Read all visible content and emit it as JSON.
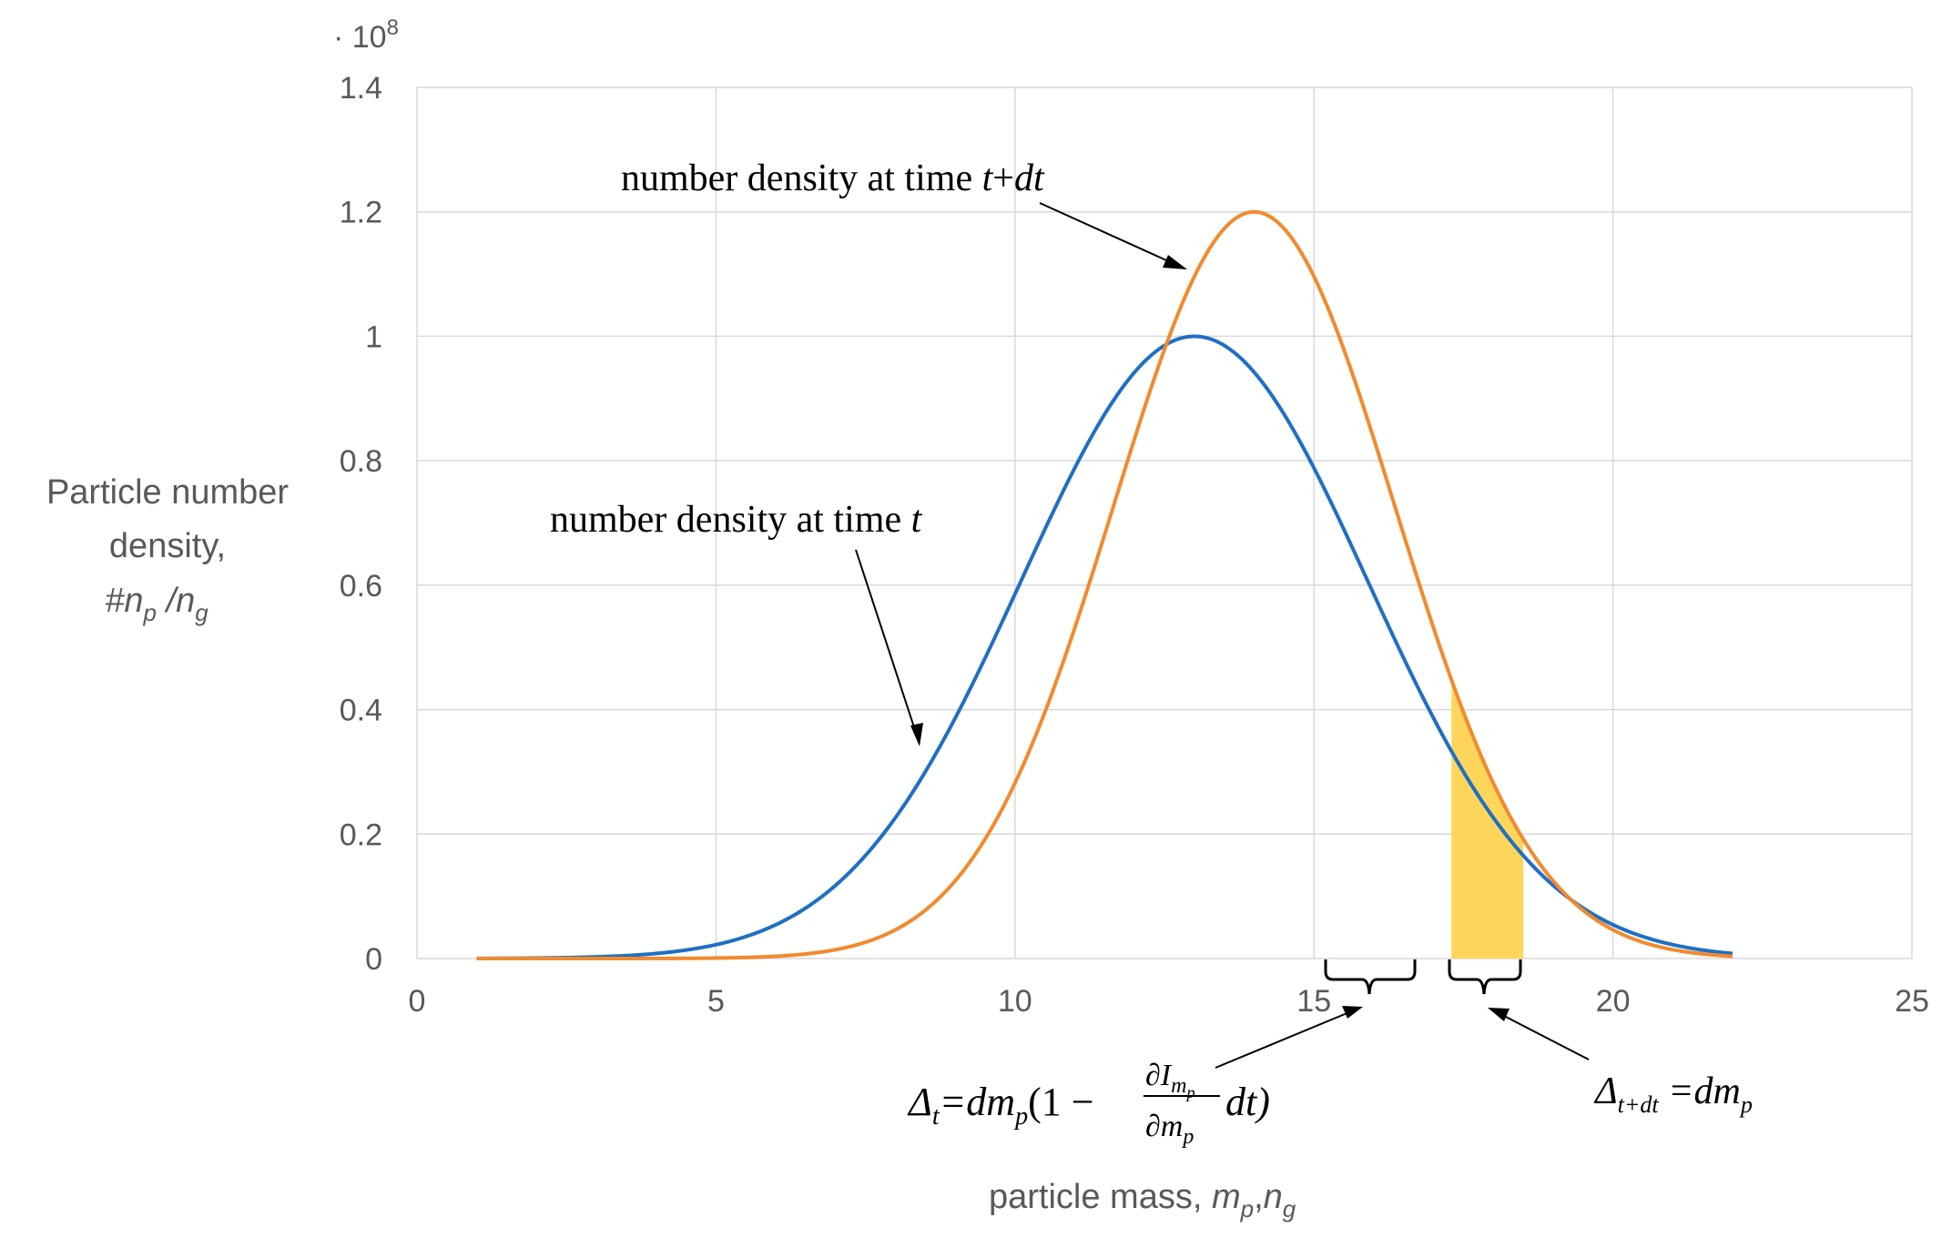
{
  "chart_data": {
    "type": "line",
    "title": "",
    "xlabel": "particle mass,",
    "xlabel_vars": [
      "m",
      "p",
      ",",
      "n",
      "g"
    ],
    "ylabel_lines": [
      "Particle number",
      "density,"
    ],
    "ylabel_vars": [
      "#n",
      "p",
      " /n",
      "g"
    ],
    "y_multiplier": "· 10",
    "y_multiplier_exp": "8",
    "xlim": [
      0,
      25
    ],
    "ylim": [
      0,
      1.4
    ],
    "x_ticks": [
      "0",
      "5",
      "10",
      "15",
      "20",
      "25"
    ],
    "y_ticks": [
      "0",
      "0.2",
      "0.4",
      "0.6",
      "0.8",
      "1",
      "1.2",
      "1.4"
    ],
    "grid": true,
    "series": [
      {
        "name": "number density at time t",
        "color": "#1f6fc5",
        "mean": 13,
        "sigma": 2.9,
        "peak": 1.0,
        "x_range": [
          1,
          22
        ]
      },
      {
        "name": "number density at time t+dt",
        "color": "#f28a2e",
        "mean": 14,
        "sigma": 2.35,
        "peak": 1.2,
        "x_range": [
          1,
          22
        ]
      }
    ],
    "highlight_band": {
      "x_start": 17.3,
      "x_end": 18.5,
      "color": "#ffd34d"
    },
    "annotations": {
      "t_label": {
        "text": "number density at time ",
        "var": "t"
      },
      "tdt_label": {
        "text": "number density at time ",
        "var": "t",
        "plus": "+",
        "var2": "dt"
      },
      "delta_t": {
        "sym": "Δ",
        "sub": "t",
        "eq": "=dm",
        "sub2": "p",
        "open": "(1 −",
        "num": "∂I",
        "num_sub": "m",
        "num_sub2": "p",
        "den": "∂m",
        "den_sub": "p",
        "tail": "dt)"
      },
      "delta_tdt": {
        "sym": "Δ",
        "sub": "t+dt",
        "eq": " =dm",
        "sub2": "p"
      }
    }
  }
}
